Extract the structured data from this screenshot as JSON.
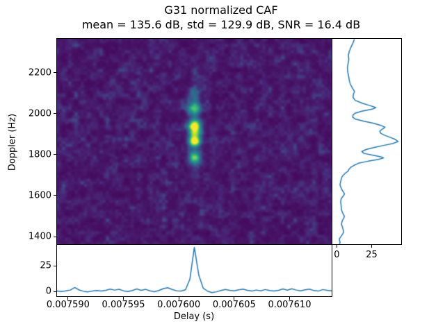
{
  "figure": {
    "background": "#ffffff",
    "text_color": "#000000"
  },
  "chart_data": [
    {
      "type": "heatmap",
      "title": "G31 normalized CAF",
      "subtitle": "mean = 135.6 dB, std = 129.9 dB, SNR = 16.4 dB",
      "stats": {
        "mean_db": 135.6,
        "std_db": 129.9,
        "snr_db": 16.4
      },
      "xlabel": "Delay (s)",
      "ylabel": "Doppler (Hz)",
      "xlim": [
        0.007589,
        0.0076138
      ],
      "ylim": [
        1363,
        2365
      ],
      "xticks": [
        0.00759,
        0.007595,
        0.0076,
        0.007605,
        0.00761
      ],
      "xtick_labels": [
        "0.007590",
        "0.007595",
        "0.007600",
        "0.007605",
        "0.007610"
      ],
      "yticks": [
        2200,
        2000,
        1800,
        1600,
        1400
      ],
      "ytick_labels": [
        "2200",
        "2000",
        "1800",
        "1600",
        "1400"
      ],
      "colormap": "viridis",
      "colormap_stops": [
        "#440154",
        "#482173",
        "#3b528b",
        "#2c728e",
        "#21918c",
        "#28ae80",
        "#5ec962",
        "#addc30",
        "#fde725"
      ],
      "noise": {
        "floor": 0.035,
        "amplitude": 0.21,
        "exponent": 1.7
      },
      "peaks": [
        {
          "delay": 0.0076014,
          "doppler": 2095,
          "amp": 0.22,
          "sigma_delay": 3.6e-07,
          "sigma_doppler": 20
        },
        {
          "delay": 0.0076014,
          "doppler": 2027,
          "amp": 0.56,
          "sigma_delay": 4e-07,
          "sigma_doppler": 22
        },
        {
          "delay": 0.0076014,
          "doppler": 1952,
          "amp": 0.5,
          "sigma_delay": 3.8e-07,
          "sigma_doppler": 18
        },
        {
          "delay": 0.0076014,
          "doppler": 1933,
          "amp": 0.58,
          "sigma_delay": 3.8e-07,
          "sigma_doppler": 18
        },
        {
          "delay": 0.0076014,
          "doppler": 1903,
          "amp": 0.45,
          "sigma_delay": 3.6e-07,
          "sigma_doppler": 16
        },
        {
          "delay": 0.0076014,
          "doppler": 1867,
          "amp": 0.95,
          "sigma_delay": 3.6e-07,
          "sigma_doppler": 17
        },
        {
          "delay": 0.0076014,
          "doppler": 1788,
          "amp": 0.58,
          "sigma_delay": 3.8e-07,
          "sigma_doppler": 19
        },
        {
          "delay": 0.0076014,
          "doppler": 1905,
          "amp": 0.13,
          "sigma_delay": 3.4e-07,
          "sigma_doppler": 150
        }
      ]
    },
    {
      "type": "line",
      "name": "delay-profile",
      "orientation": "horizontal",
      "line_color": "#1f77b4",
      "yticks": [
        25,
        0
      ],
      "ylim": [
        -4.7,
        45.3
      ],
      "points": [
        [
          0.007589,
          0.4
        ],
        [
          0.0075894,
          -0.2
        ],
        [
          0.0075898,
          0.5
        ],
        [
          0.0075902,
          1.3
        ],
        [
          0.0075906,
          3.8
        ],
        [
          0.007591,
          1.4
        ],
        [
          0.0075914,
          0.1
        ],
        [
          0.0075918,
          -0.4
        ],
        [
          0.0075922,
          0.4
        ],
        [
          0.0075926,
          0.9
        ],
        [
          0.007593,
          0.3
        ],
        [
          0.0075934,
          1.1
        ],
        [
          0.0075938,
          2.2
        ],
        [
          0.0075942,
          1.3
        ],
        [
          0.0075946,
          2.0
        ],
        [
          0.007595,
          0.6
        ],
        [
          0.0075954,
          -0.2
        ],
        [
          0.0075958,
          0.9
        ],
        [
          0.0075962,
          2.4
        ],
        [
          0.0075966,
          1.1
        ],
        [
          0.007597,
          2.0
        ],
        [
          0.0075974,
          0.5
        ],
        [
          0.0075978,
          -0.3
        ],
        [
          0.0075982,
          0.9
        ],
        [
          0.0075986,
          2.7
        ],
        [
          0.007599,
          3.6
        ],
        [
          0.0075994,
          1.9
        ],
        [
          0.0075998,
          0.6
        ],
        [
          0.0076002,
          0.4
        ],
        [
          0.0076006,
          1.6
        ],
        [
          0.007601,
          12.0
        ],
        [
          0.0076014,
          43.0
        ],
        [
          0.0076018,
          16.0
        ],
        [
          0.0076022,
          3.2
        ],
        [
          0.0076026,
          0.2
        ],
        [
          0.007603,
          -1.2
        ],
        [
          0.0076034,
          -0.4
        ],
        [
          0.0076038,
          0.9
        ],
        [
          0.0076042,
          1.9
        ],
        [
          0.0076046,
          1.1
        ],
        [
          0.007605,
          0.5
        ],
        [
          0.0076054,
          1.5
        ],
        [
          0.0076058,
          2.2
        ],
        [
          0.0076062,
          1.0
        ],
        [
          0.0076066,
          0.3
        ],
        [
          0.007607,
          1.3
        ],
        [
          0.0076074,
          0.6
        ],
        [
          0.0076078,
          1.8
        ],
        [
          0.0076082,
          0.9
        ],
        [
          0.0076086,
          0.4
        ],
        [
          0.007609,
          1.1
        ],
        [
          0.0076094,
          2.4
        ],
        [
          0.0076098,
          1.2
        ],
        [
          0.0076102,
          2.6
        ],
        [
          0.0076106,
          1.3
        ],
        [
          0.007611,
          0.5
        ],
        [
          0.0076114,
          1.5
        ],
        [
          0.0076118,
          2.2
        ],
        [
          0.0076122,
          0.8
        ],
        [
          0.0076126,
          0.3
        ],
        [
          0.007613,
          1.8
        ],
        [
          0.0076134,
          1.0
        ],
        [
          0.0076138,
          0.6
        ]
      ]
    },
    {
      "type": "line",
      "name": "doppler-profile",
      "orientation": "vertical",
      "line_color": "#1f77b4",
      "xticks": [
        0,
        25
      ],
      "xlim": [
        -3.2,
        46.2
      ],
      "points": [
        [
          2363,
          12.6
        ],
        [
          2345,
          11.6
        ],
        [
          2325,
          10.2
        ],
        [
          2305,
          9.0
        ],
        [
          2285,
          8.3
        ],
        [
          2265,
          8.6
        ],
        [
          2245,
          8.1
        ],
        [
          2225,
          7.6
        ],
        [
          2205,
          7.8
        ],
        [
          2185,
          8.4
        ],
        [
          2165,
          8.9
        ],
        [
          2145,
          9.6
        ],
        [
          2125,
          11.2
        ],
        [
          2108,
          12.7
        ],
        [
          2095,
          11.9
        ],
        [
          2080,
          11.6
        ],
        [
          2065,
          13.2
        ],
        [
          2050,
          18.5
        ],
        [
          2038,
          24.5
        ],
        [
          2030,
          28.0
        ],
        [
          2022,
          25.5
        ],
        [
          2012,
          18.0
        ],
        [
          2002,
          13.0
        ],
        [
          1993,
          11.6
        ],
        [
          1983,
          11.4
        ],
        [
          1973,
          13.5
        ],
        [
          1963,
          19.5
        ],
        [
          1953,
          26.5
        ],
        [
          1943,
          31.5
        ],
        [
          1934,
          34.6
        ],
        [
          1924,
          32.5
        ],
        [
          1914,
          30.8
        ],
        [
          1904,
          31.5
        ],
        [
          1894,
          34.5
        ],
        [
          1884,
          38.5
        ],
        [
          1874,
          42.0
        ],
        [
          1864,
          44.0
        ],
        [
          1855,
          40.5
        ],
        [
          1845,
          33.5
        ],
        [
          1835,
          27.0
        ],
        [
          1825,
          21.0
        ],
        [
          1815,
          17.9
        ],
        [
          1806,
          19.5
        ],
        [
          1797,
          26.0
        ],
        [
          1789,
          32.0
        ],
        [
          1784,
          33.6
        ],
        [
          1777,
          30.0
        ],
        [
          1768,
          22.5
        ],
        [
          1758,
          15.5
        ],
        [
          1748,
          12.4
        ],
        [
          1738,
          10.0
        ],
        [
          1728,
          8.6
        ],
        [
          1720,
          8.1
        ],
        [
          1710,
          6.2
        ],
        [
          1700,
          4.6
        ],
        [
          1690,
          3.6
        ],
        [
          1678,
          3.1
        ],
        [
          1665,
          2.6
        ],
        [
          1652,
          2.3
        ],
        [
          1640,
          3.0
        ],
        [
          1628,
          3.7
        ],
        [
          1616,
          4.9
        ],
        [
          1608,
          5.5
        ],
        [
          1598,
          4.6
        ],
        [
          1588,
          3.4
        ],
        [
          1578,
          2.9
        ],
        [
          1568,
          2.8
        ],
        [
          1556,
          3.0
        ],
        [
          1544,
          3.2
        ],
        [
          1532,
          3.3
        ],
        [
          1520,
          3.9
        ],
        [
          1510,
          4.6
        ],
        [
          1500,
          5.4
        ],
        [
          1490,
          5.0
        ],
        [
          1480,
          4.1
        ],
        [
          1470,
          3.6
        ],
        [
          1460,
          3.3
        ],
        [
          1450,
          3.9
        ],
        [
          1440,
          4.3
        ],
        [
          1430,
          4.7
        ],
        [
          1420,
          4.8
        ],
        [
          1410,
          3.9
        ],
        [
          1400,
          2.9
        ],
        [
          1390,
          1.9
        ],
        [
          1380,
          2.0
        ],
        [
          1370,
          2.4
        ],
        [
          1365,
          1.7
        ]
      ]
    }
  ]
}
